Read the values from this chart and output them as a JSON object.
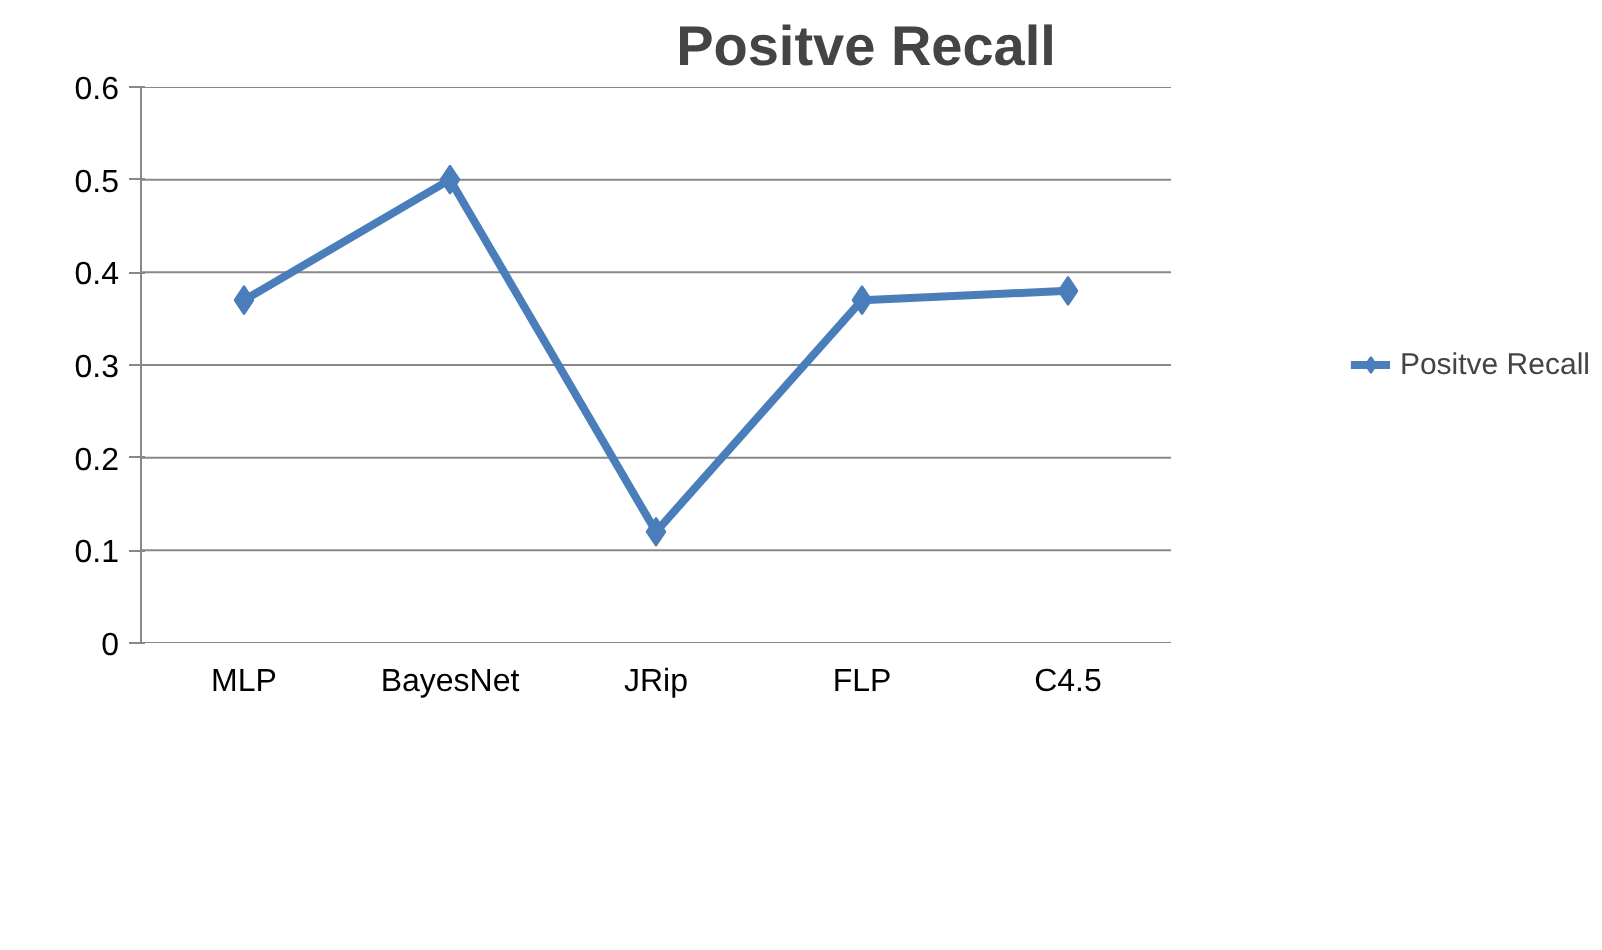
{
  "chart_data": {
    "type": "line",
    "title": "Positve Recall",
    "categories": [
      "MLP",
      "BayesNet",
      "JRip",
      "FLP",
      "C4.5"
    ],
    "series": [
      {
        "name": "Positve Recall",
        "color": "#4a7ebb",
        "values": [
          0.37,
          0.5,
          0.12,
          0.37,
          0.38
        ]
      }
    ],
    "ylim": [
      0,
      0.6
    ],
    "yticks": [
      0,
      0.1,
      0.2,
      0.3,
      0.4,
      0.5,
      0.6
    ],
    "grid": "y",
    "legend": "right",
    "marker": "diamond",
    "line_style": "solid"
  }
}
